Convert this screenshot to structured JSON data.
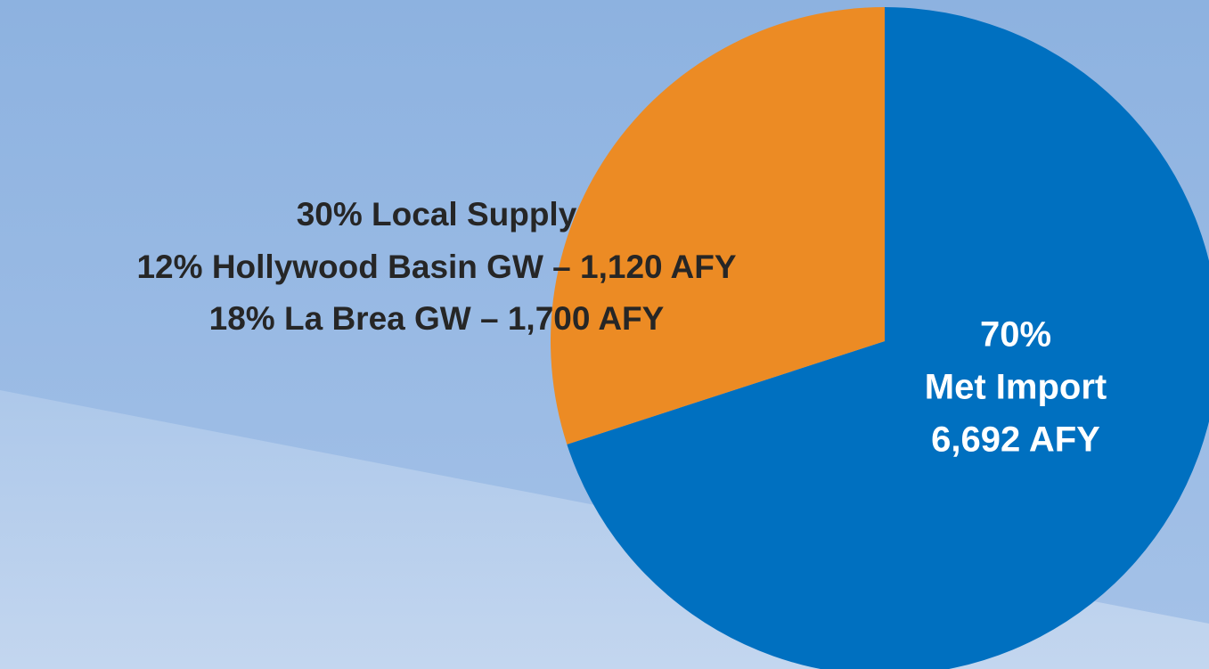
{
  "chart_data": {
    "type": "pie",
    "categories": [
      "Met Import",
      "Local Supply"
    ],
    "values": [
      70,
      30
    ],
    "value_labels": [
      "70%",
      "30% Local Supply"
    ],
    "details": [
      [
        "Met Import",
        "6,692 AFY"
      ],
      [
        "12% Hollywood Basin GW – 1,120 AFY",
        "18% La Brea GW – 1,700 AFY"
      ]
    ],
    "colors": [
      "#0070c0",
      "#ec8b24"
    ]
  }
}
